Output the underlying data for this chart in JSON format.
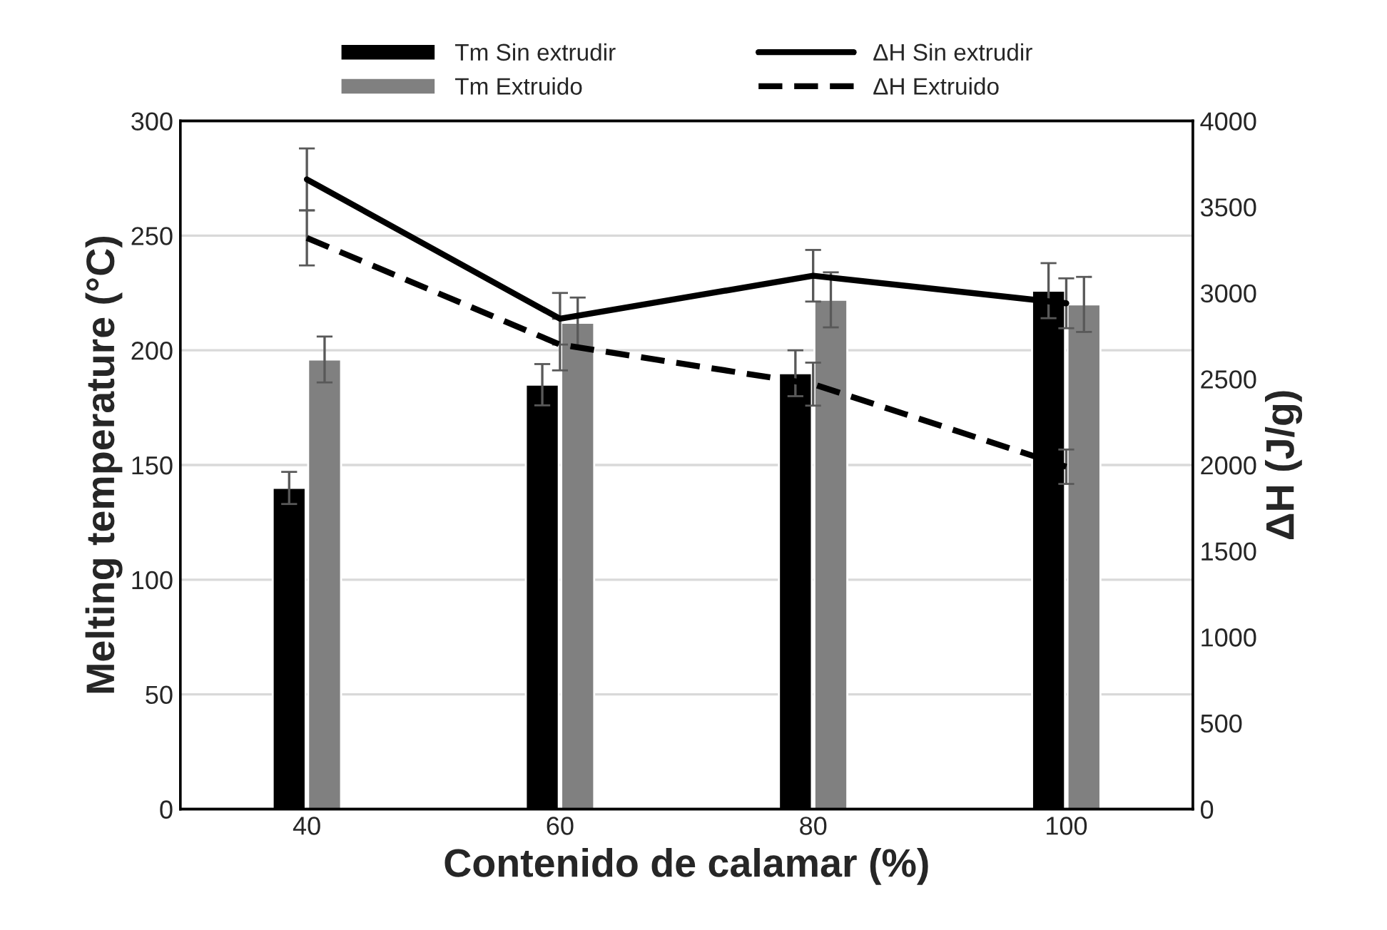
{
  "chart_data": {
    "type": "bar",
    "categories": [
      "40",
      "60",
      "80",
      "100"
    ],
    "xlabel": "Contenido de calamar (%)",
    "ylabel": "Melting temperature (°C)",
    "y2label": "ΔH (J/g)",
    "series": [
      {
        "name": "Tm Sin extrudir",
        "color": "#000000",
        "values": [
          140,
          185,
          190,
          226
        ],
        "errors": [
          7,
          9,
          10,
          12
        ]
      },
      {
        "name": "Tm Extruido",
        "color": "#808080",
        "values": [
          196,
          212,
          222,
          220
        ],
        "errors": [
          10,
          11,
          12,
          12
        ]
      },
      {
        "name": "ΔH Sin extrudir",
        "type": "line",
        "axis": "y2",
        "color": "#000000",
        "line_style": "solid",
        "values": [
          3660,
          2850,
          3100,
          2940
        ],
        "errors": [
          180,
          150,
          150,
          145
        ]
      },
      {
        "name": "ΔH Extruido",
        "type": "line",
        "axis": "y2",
        "color": "#000000",
        "line_style": "dashed",
        "values": [
          3320,
          2700,
          2470,
          1990
        ],
        "errors": [
          160,
          150,
          125,
          100
        ]
      }
    ],
    "ylim": [
      0,
      300
    ],
    "yticks": [
      0,
      50,
      100,
      150,
      200,
      250,
      300
    ],
    "y2lim": [
      0,
      4000
    ],
    "y2ticks": [
      0,
      500,
      1000,
      1500,
      2000,
      2500,
      3000,
      3500,
      4000
    ],
    "grid": "y",
    "legend": "top"
  }
}
